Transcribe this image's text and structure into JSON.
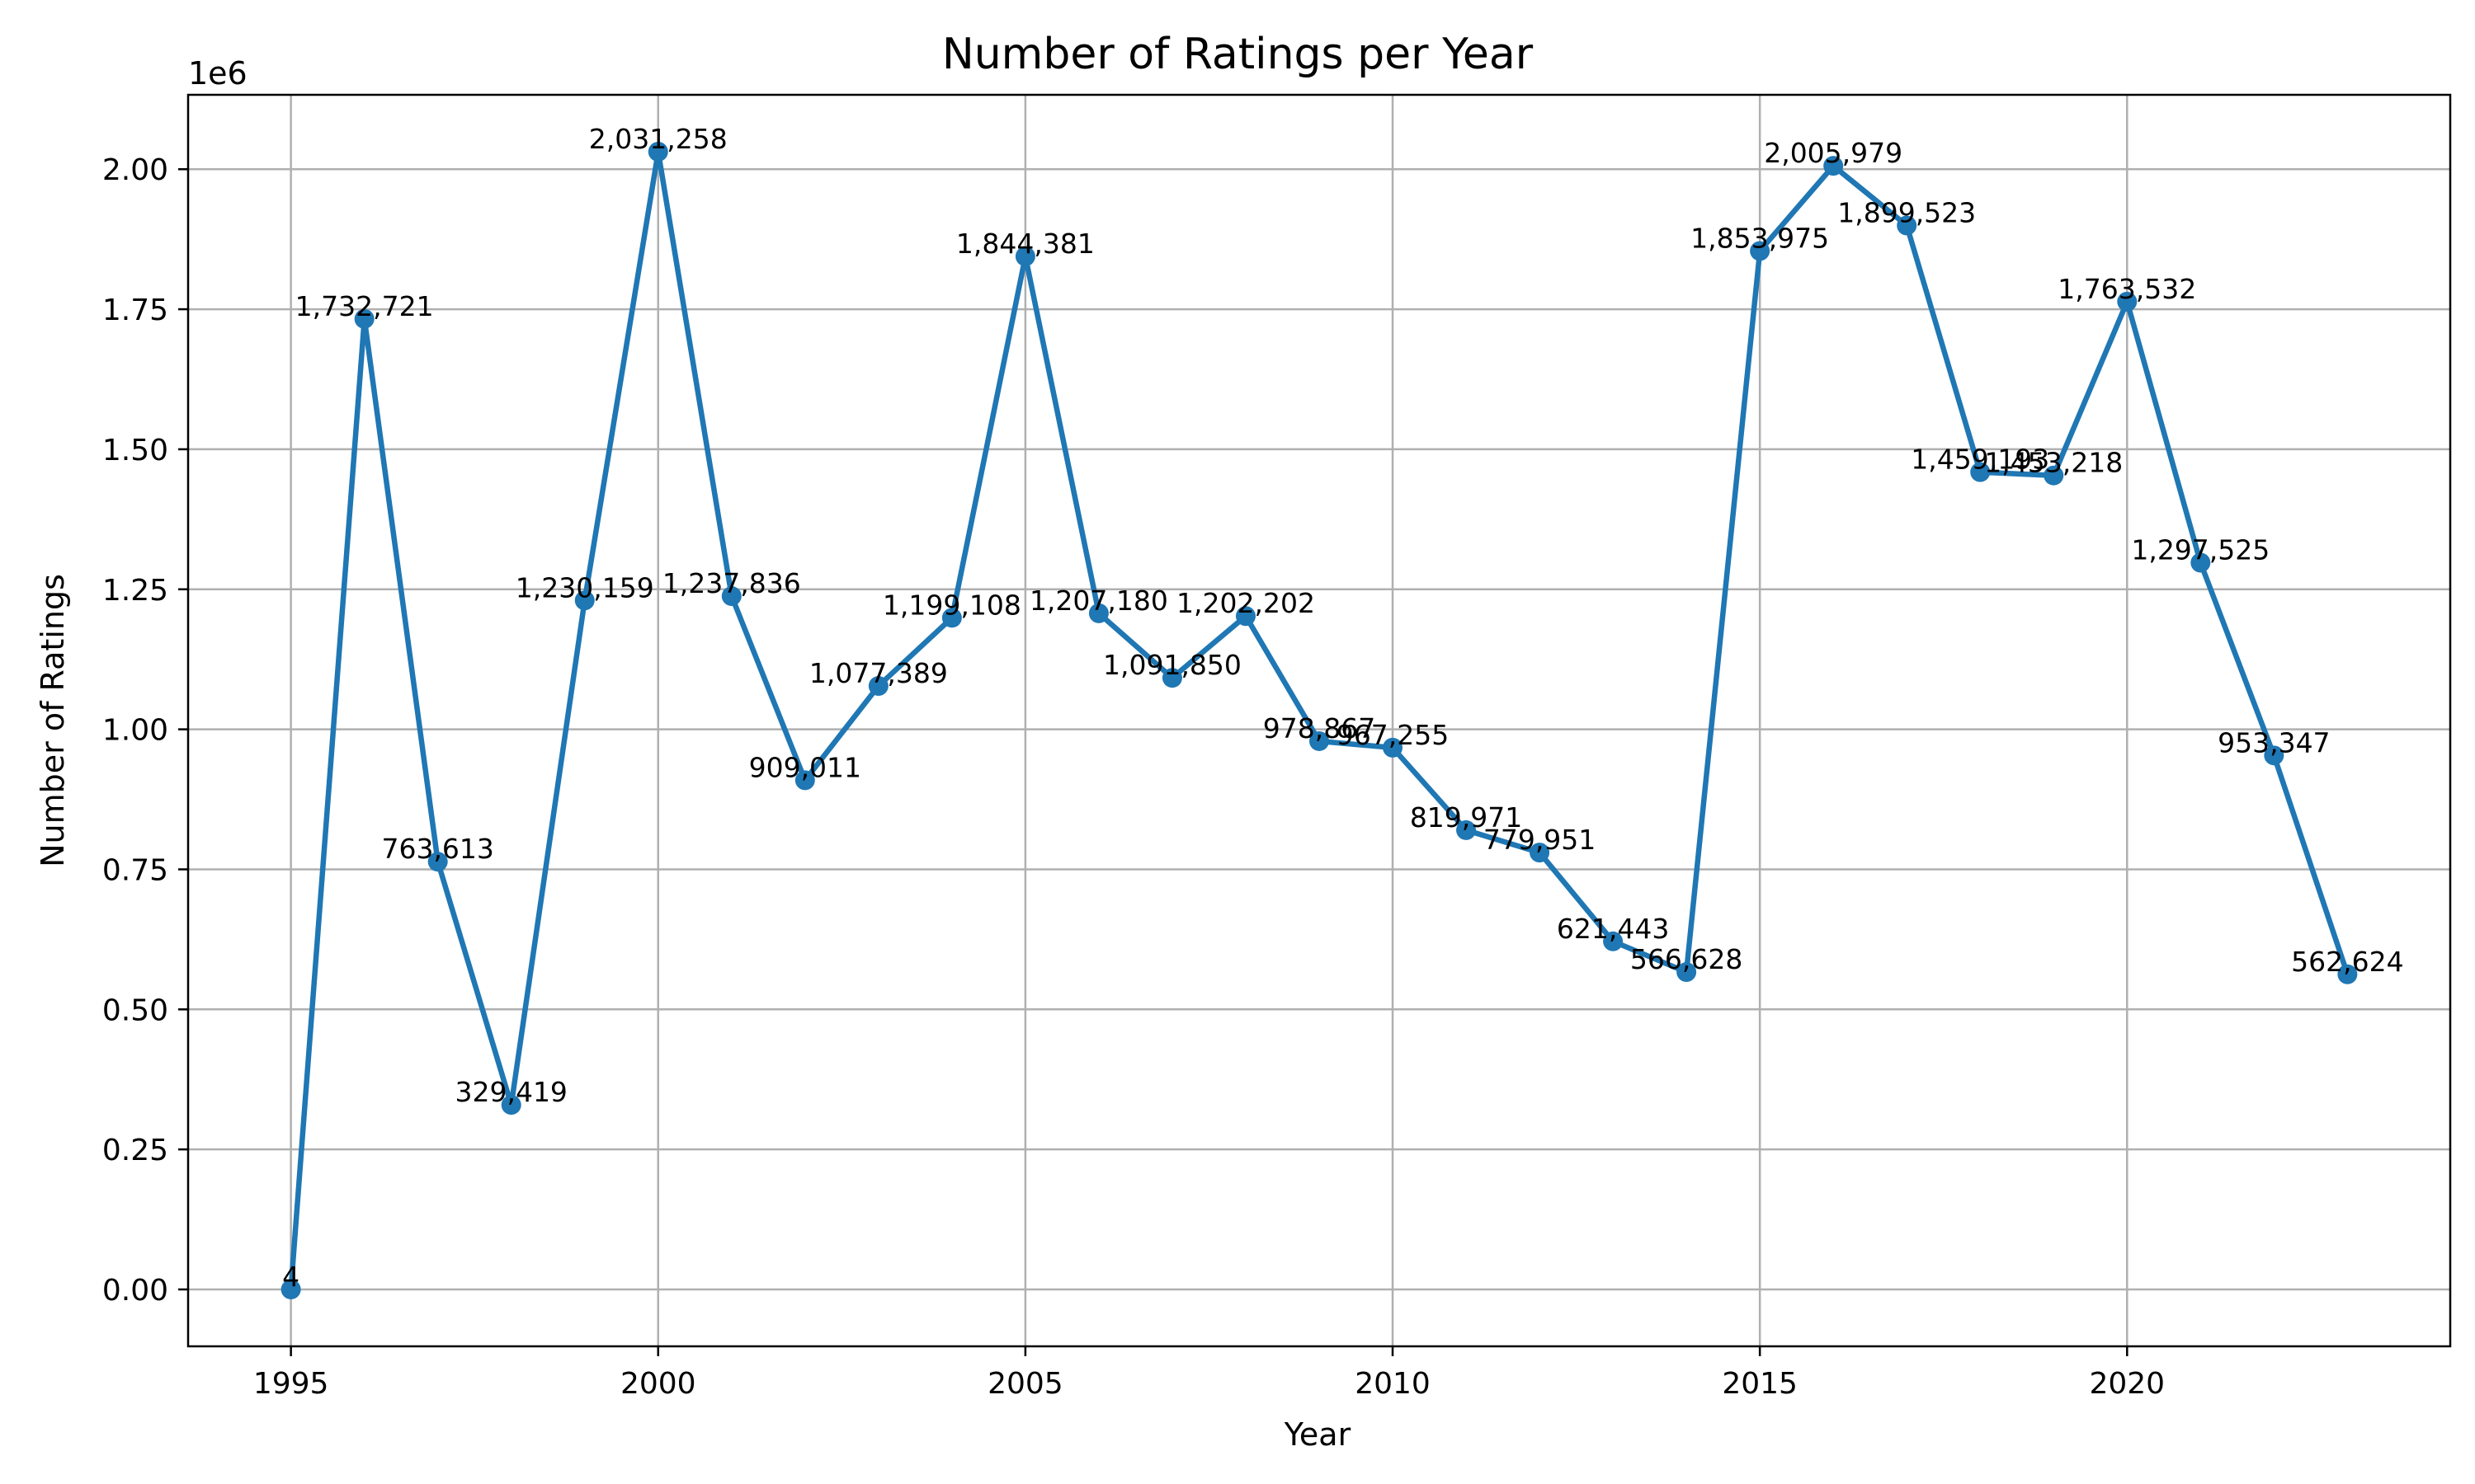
{
  "chart_data": {
    "type": "line",
    "title": "Number of Ratings per Year",
    "xlabel": "Year",
    "ylabel": "Number of Ratings",
    "y_offset_text": "1e6",
    "x": [
      1995,
      1996,
      1997,
      1998,
      1999,
      2000,
      2001,
      2002,
      2003,
      2004,
      2005,
      2006,
      2007,
      2008,
      2009,
      2010,
      2011,
      2012,
      2013,
      2014,
      2015,
      2016,
      2017,
      2018,
      2019,
      2020,
      2021,
      2022,
      2023
    ],
    "series": [
      {
        "color": "#1f77b4",
        "marker": "circle",
        "values": [
          4,
          1732721,
          763613,
          329419,
          1230159,
          2031258,
          1237836,
          909011,
          1077389,
          1199108,
          1844381,
          1207180,
          1091850,
          1202202,
          978867,
          967255,
          819971,
          779951,
          621443,
          566628,
          1853975,
          2005979,
          1899523,
          1459193,
          1453218,
          1763532,
          1297525,
          953347,
          562624
        ],
        "labels": [
          "4",
          "1,732,721",
          "763,613",
          "329,419",
          "1,230,159",
          "2,031,258",
          "1,237,836",
          "909,011",
          "1,077,389",
          "1,199,108",
          "1,844,381",
          "1,207,180",
          "1,091,850",
          "1,202,202",
          "978,867",
          "967,255",
          "819,971",
          "779,951",
          "621,443",
          "566,628",
          "1,853,975",
          "2,005,979",
          "1,899,523",
          "1,459,193",
          "1,453,218",
          "1,763,532",
          "1,297,525",
          "953,347",
          "562,624"
        ]
      }
    ],
    "xlim": [
      1993.6,
      2024.4
    ],
    "ylim": [
      -101562,
      2132820
    ],
    "xticks": [
      1995,
      2000,
      2005,
      2010,
      2015,
      2020
    ],
    "xtick_labels": [
      "1995",
      "2000",
      "2005",
      "2010",
      "2015",
      "2020"
    ],
    "yticks": [
      0,
      250000,
      500000,
      750000,
      1000000,
      1250000,
      1500000,
      1750000,
      2000000
    ],
    "ytick_labels": [
      "0.00",
      "0.25",
      "0.50",
      "0.75",
      "1.00",
      "1.25",
      "1.50",
      "1.75",
      "2.00"
    ],
    "grid": true,
    "legend": "none"
  }
}
